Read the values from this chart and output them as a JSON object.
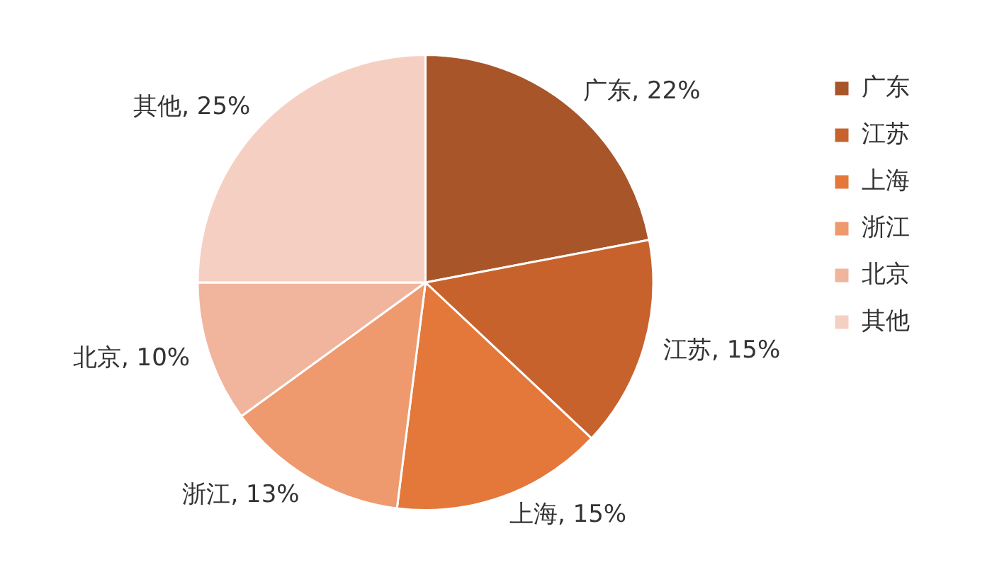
{
  "chart_data": {
    "type": "pie",
    "categories": [
      "广东",
      "江苏",
      "上海",
      "浙江",
      "北京",
      "其他"
    ],
    "values": [
      22,
      15,
      15,
      13,
      10,
      25
    ],
    "value_labels": [
      "广东, 22%",
      "江苏, 15%",
      "上海, 15%",
      "浙江, 13%",
      "北京, 10%",
      "其他, 25%"
    ],
    "colors": [
      "#a9552a",
      "#c8622d",
      "#e4773a",
      "#ee9a6e",
      "#f1b49d",
      "#f6cfc3"
    ],
    "legend": "top right"
  }
}
